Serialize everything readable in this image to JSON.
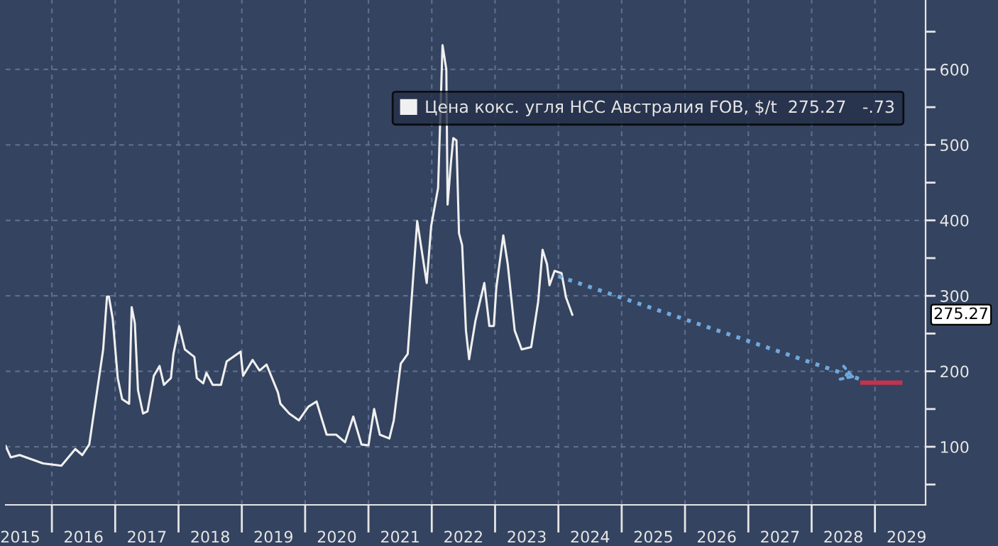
{
  "chart_data": {
    "type": "line",
    "xlim": [
      2015.27,
      2029.8
    ],
    "ylim": [
      23,
      692
    ],
    "xticks": [
      {
        "value": 2015.5,
        "label": "2015"
      },
      {
        "value": 2016,
        "label": null
      },
      {
        "value": 2016.5,
        "label": "2016"
      },
      {
        "value": 2017,
        "label": null
      },
      {
        "value": 2017.5,
        "label": "2017"
      },
      {
        "value": 2018,
        "label": null
      },
      {
        "value": 2018.5,
        "label": "2018"
      },
      {
        "value": 2019,
        "label": null
      },
      {
        "value": 2019.5,
        "label": "2019"
      },
      {
        "value": 2020,
        "label": null
      },
      {
        "value": 2020.5,
        "label": "2020"
      },
      {
        "value": 2021,
        "label": null
      },
      {
        "value": 2021.5,
        "label": "2021"
      },
      {
        "value": 2022,
        "label": null
      },
      {
        "value": 2022.5,
        "label": "2022"
      },
      {
        "value": 2023,
        "label": null
      },
      {
        "value": 2023.5,
        "label": "2023"
      },
      {
        "value": 2024,
        "label": null
      },
      {
        "value": 2024.5,
        "label": "2024"
      },
      {
        "value": 2025,
        "label": null
      },
      {
        "value": 2025.5,
        "label": "2025"
      },
      {
        "value": 2026,
        "label": null
      },
      {
        "value": 2026.5,
        "label": "2026"
      },
      {
        "value": 2027,
        "label": null
      },
      {
        "value": 2027.5,
        "label": "2027"
      },
      {
        "value": 2028,
        "label": null
      },
      {
        "value": 2028.5,
        "label": "2028"
      },
      {
        "value": 2029,
        "label": null
      },
      {
        "value": 2029.5,
        "label": "2029"
      }
    ],
    "yticks": [
      {
        "value": 50,
        "label": null
      },
      100,
      {
        "value": 150,
        "label": null
      },
      200,
      {
        "value": 250,
        "label": null
      },
      300,
      {
        "value": 350,
        "label": null
      },
      400,
      {
        "value": 450,
        "label": null
      },
      500,
      {
        "value": 550,
        "label": null
      },
      600,
      {
        "value": 650,
        "label": null
      }
    ],
    "grid": true,
    "legend": "top right",
    "line_style": "solid",
    "annotations": [
      "275.27"
    ],
    "series": [
      {
        "name": "Цена кокс. угля HCC Австралия FOB, $/t  275.27   -.73",
        "color": "#f0f0f0",
        "x": [
          2015.27,
          2015.35,
          2015.49,
          2015.86,
          2016.15,
          2016.37,
          2016.48,
          2016.59,
          2016.7,
          2016.81,
          2016.87,
          2016.9,
          2016.96,
          2017.04,
          2017.11,
          2017.22,
          2017.26,
          2017.31,
          2017.36,
          2017.44,
          2017.51,
          2017.61,
          2017.7,
          2017.77,
          2017.88,
          2017.92,
          2018.01,
          2018.1,
          2018.25,
          2018.29,
          2018.39,
          2018.44,
          2018.54,
          2018.67,
          2018.76,
          2018.98,
          2019.02,
          2019.17,
          2019.28,
          2019.39,
          2019.57,
          2019.61,
          2019.75,
          2019.9,
          2020.05,
          2020.18,
          2020.27,
          2020.34,
          2020.49,
          2020.63,
          2020.76,
          2020.89,
          2021.0,
          2021.09,
          2021.18,
          2021.33,
          2021.4,
          2021.51,
          2021.62,
          2021.7,
          2021.77,
          2021.92,
          2021.99,
          2022.1,
          2022.17,
          2022.23,
          2022.25,
          2022.3,
          2022.34,
          2022.39,
          2022.43,
          2022.48,
          2022.54,
          2022.59,
          2022.69,
          2022.83,
          2022.91,
          2022.98,
          2023.02,
          2023.13,
          2023.2,
          2023.31,
          2023.42,
          2023.57,
          2023.68,
          2023.75,
          2023.82,
          2023.86,
          2023.94,
          2024.05,
          2024.12,
          2024.22
        ],
        "values": [
          101,
          86,
          89,
          78,
          75,
          97,
          89,
          103,
          166,
          229,
          299,
          299,
          270,
          191,
          163,
          157,
          285,
          264,
          175,
          144,
          147,
          194,
          207,
          182,
          191,
          223,
          260,
          229,
          219,
          191,
          184,
          198,
          182,
          182,
          213,
          226,
          194,
          215,
          201,
          209,
          172,
          157,
          144,
          135,
          153,
          160,
          135,
          116,
          116,
          106,
          140,
          103,
          102,
          150,
          116,
          111,
          135,
          210,
          223,
          317,
          399,
          317,
          392,
          443,
          632,
          600,
          421,
          474,
          509,
          506,
          383,
          367,
          254,
          216,
          267,
          317,
          260,
          260,
          311,
          380,
          342,
          254,
          229,
          232,
          292,
          361,
          342,
          314,
          333,
          330,
          298,
          275
        ]
      },
      {
        "color": "#6fa8dc",
        "line_style": "dotted",
        "x": [
          2024.0,
          2028.75
        ],
        "values": [
          326,
          190
        ]
      },
      {
        "color": "#c0344f",
        "x": [
          2028.8,
          2029.4
        ],
        "values": [
          185,
          185
        ]
      }
    ]
  }
}
